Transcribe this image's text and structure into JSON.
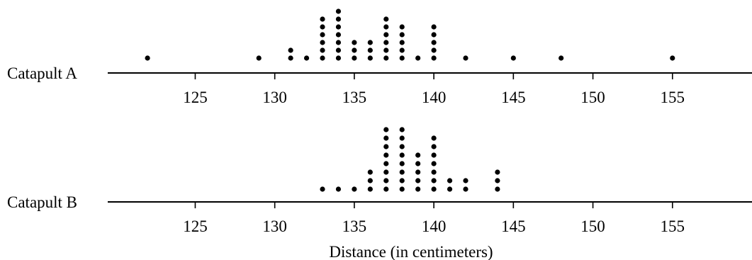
{
  "chart_data": {
    "type": "dot plot",
    "xlabel": "Distance (in centimeters)",
    "xlim": [
      119.5,
      160
    ],
    "xticks": [
      125,
      130,
      135,
      140,
      145,
      150,
      155
    ],
    "tick_labels": [
      "125",
      "130",
      "135",
      "140",
      "145",
      "150",
      "155"
    ],
    "series": [
      {
        "name": "Catapult A",
        "points": [
          {
            "x": 122,
            "count": 1
          },
          {
            "x": 129,
            "count": 1
          },
          {
            "x": 131,
            "count": 2
          },
          {
            "x": 132,
            "count": 1
          },
          {
            "x": 133,
            "count": 6
          },
          {
            "x": 134,
            "count": 7
          },
          {
            "x": 135,
            "count": 3
          },
          {
            "x": 136,
            "count": 3
          },
          {
            "x": 137,
            "count": 6
          },
          {
            "x": 138,
            "count": 5
          },
          {
            "x": 139,
            "count": 1
          },
          {
            "x": 140,
            "count": 5
          },
          {
            "x": 142,
            "count": 1
          },
          {
            "x": 145,
            "count": 1
          },
          {
            "x": 148,
            "count": 1
          },
          {
            "x": 155,
            "count": 1
          }
        ]
      },
      {
        "name": "Catapult B",
        "points": [
          {
            "x": 133,
            "count": 1
          },
          {
            "x": 134,
            "count": 1
          },
          {
            "x": 135,
            "count": 1
          },
          {
            "x": 136,
            "count": 3
          },
          {
            "x": 137,
            "count": 8
          },
          {
            "x": 138,
            "count": 8
          },
          {
            "x": 139,
            "count": 5
          },
          {
            "x": 140,
            "count": 7
          },
          {
            "x": 141,
            "count": 2
          },
          {
            "x": 142,
            "count": 2
          },
          {
            "x": 144,
            "count": 3
          }
        ]
      }
    ]
  }
}
